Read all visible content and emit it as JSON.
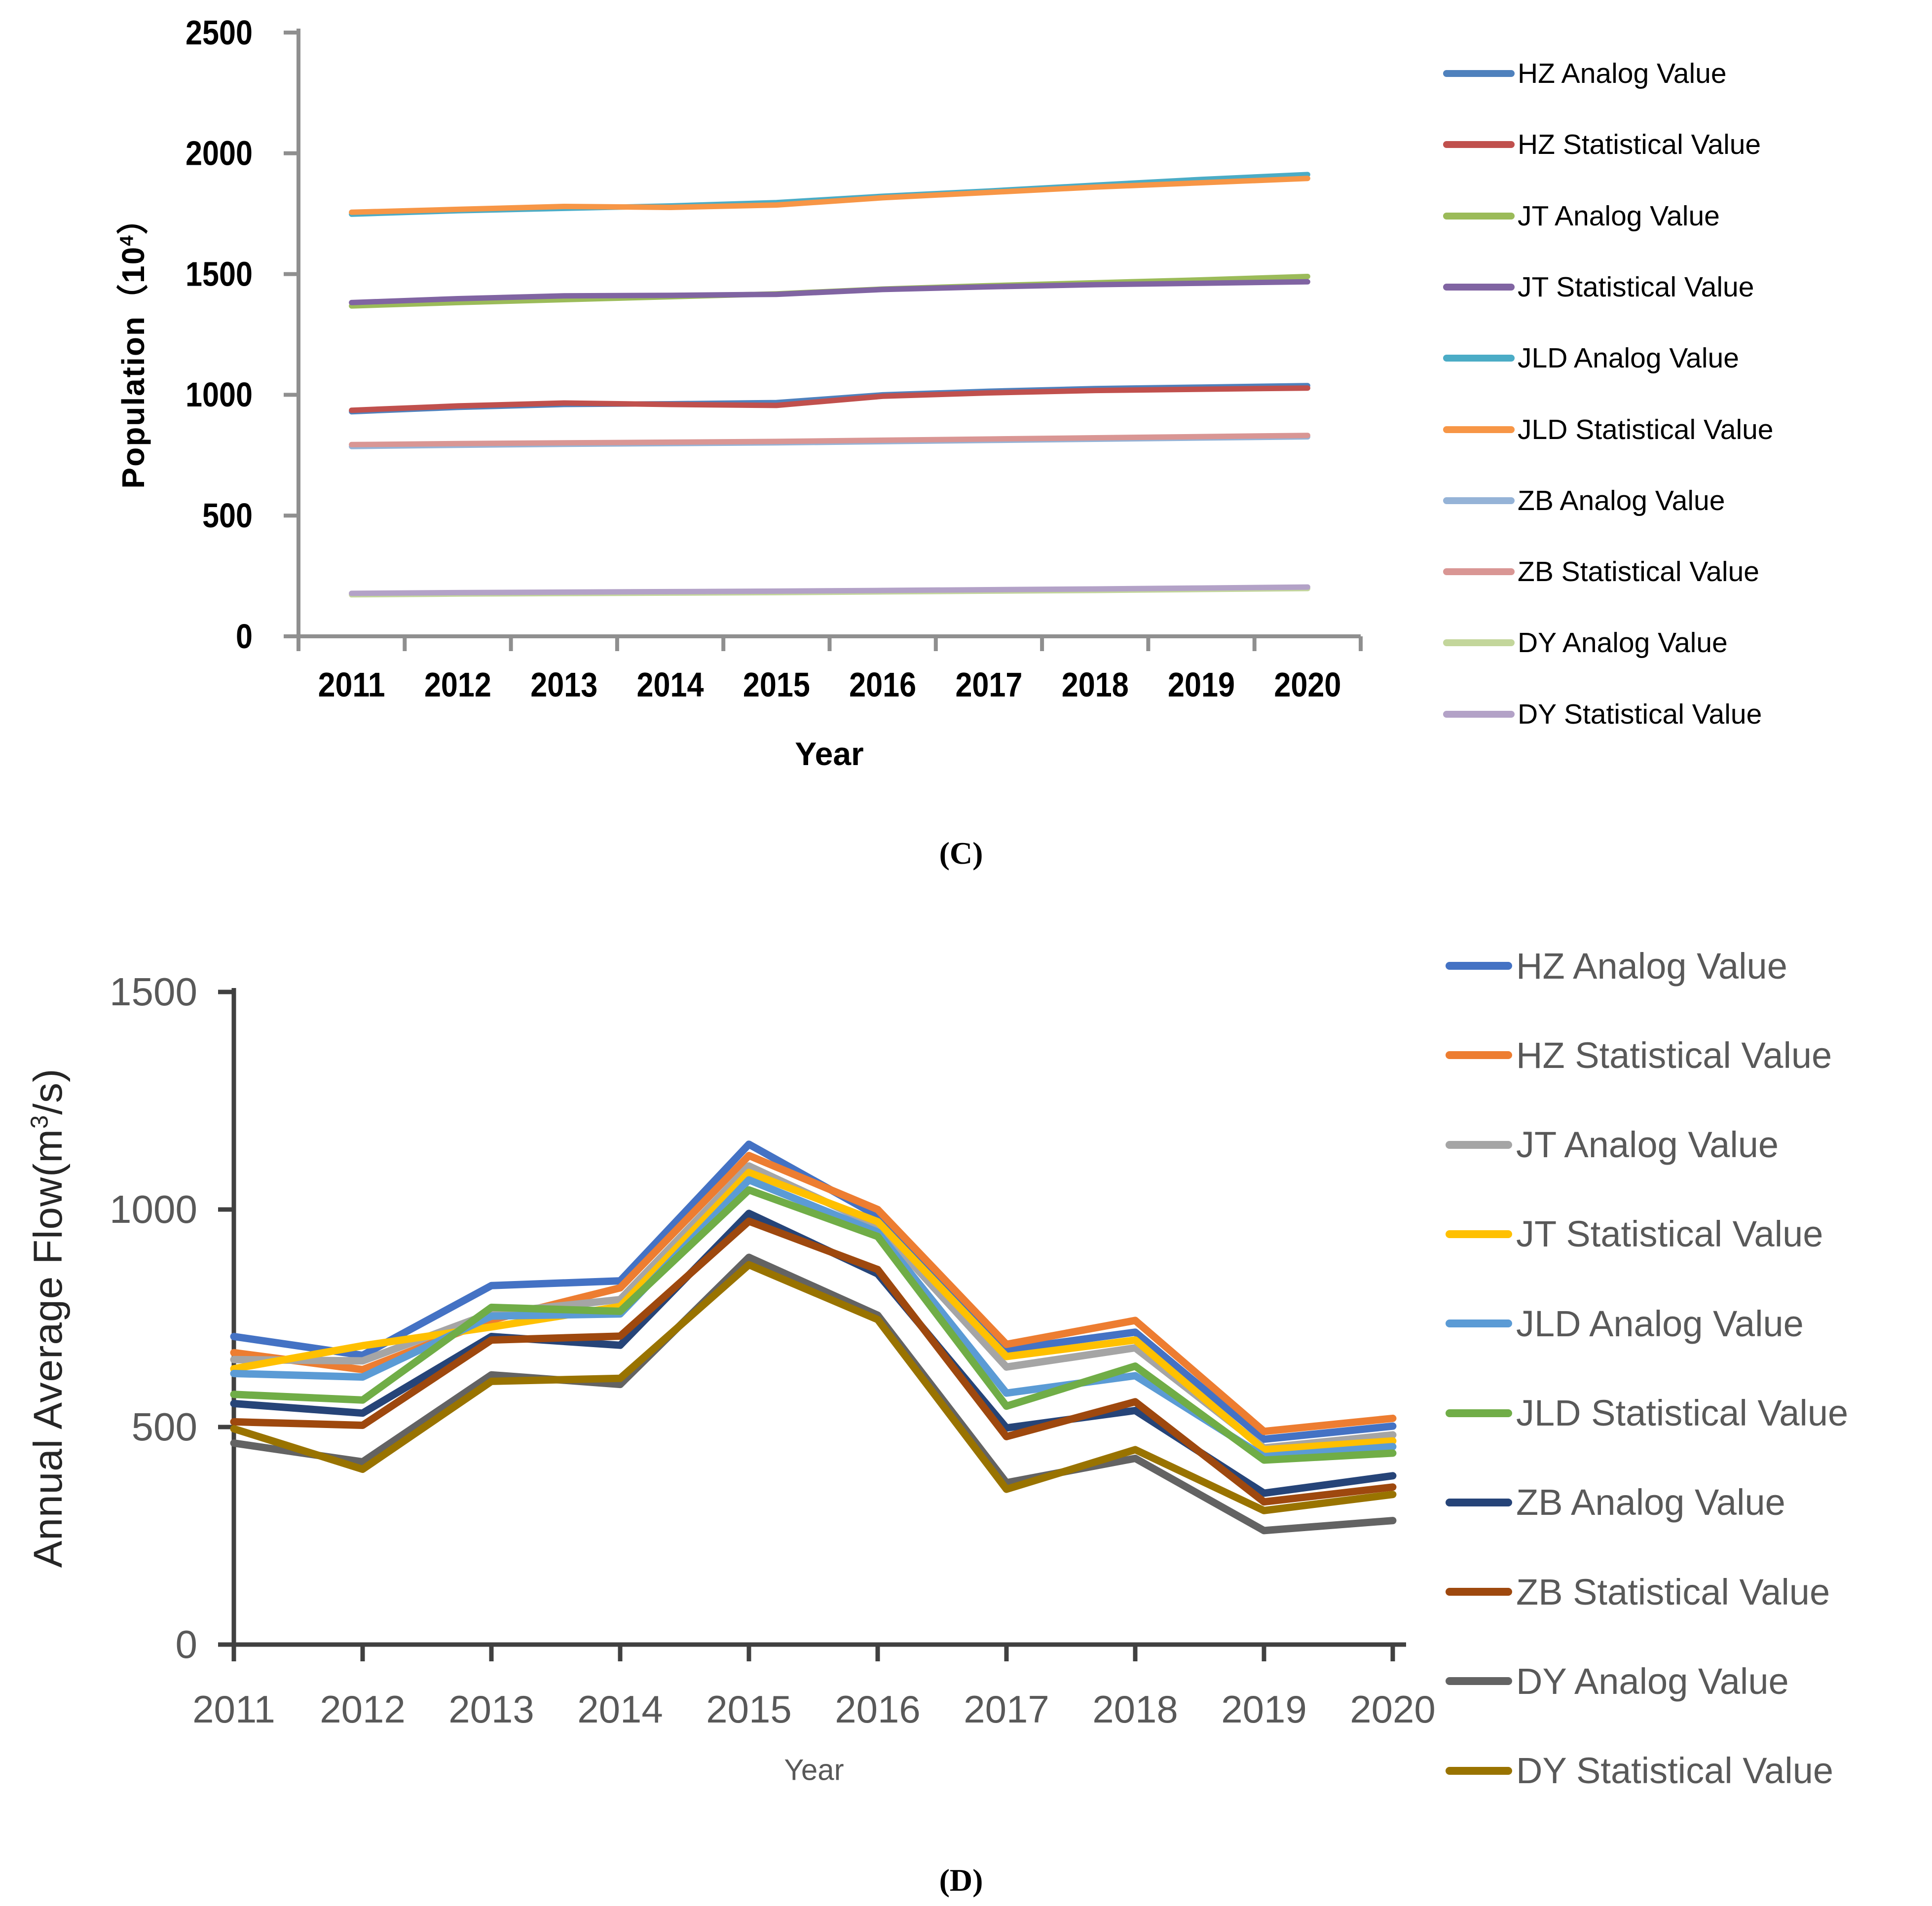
{
  "figure": {
    "background": "#ffffff",
    "caption_c": "(C)",
    "caption_d": "(D)"
  },
  "chart_data": [
    {
      "id": "C",
      "type": "line",
      "caption": "(C)",
      "xlabel": "Year",
      "ylabel": "Population（10⁴）",
      "ylabel_parts": {
        "base": "Population（10",
        "sup": "4",
        "suffix": "）"
      },
      "x": [
        2011,
        2012,
        2013,
        2014,
        2015,
        2016,
        2017,
        2018,
        2019,
        2020
      ],
      "ylim": [
        0,
        2500
      ],
      "yticks": [
        0,
        500,
        1000,
        1500,
        2000,
        2500
      ],
      "grid": false,
      "legend_position": "right",
      "axis_color": "#8f8f8f",
      "tick_label_color": "#000000",
      "series": [
        {
          "name": "HZ Analog Value",
          "color": "#4F81BD",
          "values": [
            930,
            948,
            960,
            963,
            968,
            1000,
            1015,
            1026,
            1032,
            1038
          ]
        },
        {
          "name": "HZ Statistical Value",
          "color": "#C0504D",
          "values": [
            936,
            954,
            966,
            960,
            956,
            994,
            1008,
            1018,
            1023,
            1028
          ]
        },
        {
          "name": "JT Analog Value",
          "color": "#9BBB59",
          "values": [
            1368,
            1382,
            1394,
            1406,
            1418,
            1438,
            1452,
            1464,
            1476,
            1490
          ]
        },
        {
          "name": "JT Statistical Value",
          "color": "#8064A2",
          "values": [
            1382,
            1398,
            1410,
            1412,
            1416,
            1436,
            1447,
            1456,
            1462,
            1468
          ]
        },
        {
          "name": "JLD Analog Value",
          "color": "#4BACC6",
          "values": [
            1748,
            1762,
            1772,
            1782,
            1796,
            1822,
            1844,
            1868,
            1892,
            1912
          ]
        },
        {
          "name": "JLD Statistical Value",
          "color": "#F79646",
          "values": [
            1756,
            1768,
            1780,
            1776,
            1786,
            1816,
            1838,
            1860,
            1878,
            1896
          ]
        },
        {
          "name": "ZB Analog Value",
          "color": "#95B3D7",
          "values": [
            786,
            791,
            795,
            798,
            801,
            806,
            811,
            816,
            821,
            826
          ]
        },
        {
          "name": "ZB Statistical Value",
          "color": "#D99694",
          "values": [
            794,
            798,
            801,
            804,
            807,
            812,
            817,
            822,
            827,
            832
          ]
        },
        {
          "name": "DY Analog Value",
          "color": "#C3D69B",
          "values": [
            172,
            175,
            177,
            179,
            181,
            184,
            187,
            190,
            194,
            198
          ]
        },
        {
          "name": "DY Statistical Value",
          "color": "#B3A2C7",
          "values": [
            178,
            181,
            183,
            185,
            187,
            190,
            193,
            196,
            200,
            204
          ]
        }
      ]
    },
    {
      "id": "D",
      "type": "line",
      "caption": "(D)",
      "xlabel": "Year",
      "ylabel": "Annual Average Flow(m³/s)",
      "ylabel_parts": {
        "base": "Annual Average Flow(m",
        "sup": "3",
        "suffix": "/s)"
      },
      "x": [
        2011,
        2012,
        2013,
        2014,
        2015,
        2016,
        2017,
        2018,
        2019,
        2020
      ],
      "ylim": [
        0,
        1500
      ],
      "yticks": [
        0,
        500,
        1000,
        1500
      ],
      "grid": false,
      "legend_position": "right",
      "axis_color": "#404040",
      "tick_label_color": "#595959",
      "series": [
        {
          "name": "HZ Analog Value",
          "color": "#4472C4",
          "values": [
            708,
            665,
            825,
            836,
            1150,
            985,
            678,
            718,
            472,
            502
          ]
        },
        {
          "name": "HZ Statistical Value",
          "color": "#ED7D31",
          "values": [
            671,
            632,
            746,
            820,
            1124,
            1000,
            690,
            745,
            490,
            520
          ]
        },
        {
          "name": "JT Analog Value",
          "color": "#A5A5A5",
          "values": [
            655,
            652,
            762,
            793,
            1100,
            962,
            638,
            682,
            452,
            482
          ]
        },
        {
          "name": "JT Statistical Value",
          "color": "#FFC000",
          "values": [
            634,
            687,
            730,
            777,
            1085,
            972,
            662,
            700,
            448,
            468
          ]
        },
        {
          "name": "JLD Analog Value",
          "color": "#5B9BD5",
          "values": [
            623,
            615,
            755,
            760,
            1068,
            948,
            578,
            618,
            432,
            455
          ]
        },
        {
          "name": "JLD Statistical Value",
          "color": "#70AD47",
          "values": [
            575,
            562,
            775,
            766,
            1045,
            938,
            548,
            640,
            424,
            440
          ]
        },
        {
          "name": "ZB Analog Value",
          "color": "#264478",
          "values": [
            554,
            532,
            708,
            688,
            991,
            852,
            498,
            538,
            348,
            388
          ]
        },
        {
          "name": "ZB Statistical Value",
          "color": "#9E480E",
          "values": [
            512,
            504,
            700,
            709,
            973,
            862,
            478,
            558,
            328,
            362
          ]
        },
        {
          "name": "DY Analog Value",
          "color": "#636363",
          "values": [
            463,
            420,
            620,
            598,
            890,
            757,
            372,
            428,
            262,
            285
          ]
        },
        {
          "name": "DY Statistical Value",
          "color": "#997300",
          "values": [
            496,
            403,
            605,
            612,
            873,
            747,
            357,
            448,
            308,
            345
          ]
        }
      ]
    }
  ]
}
